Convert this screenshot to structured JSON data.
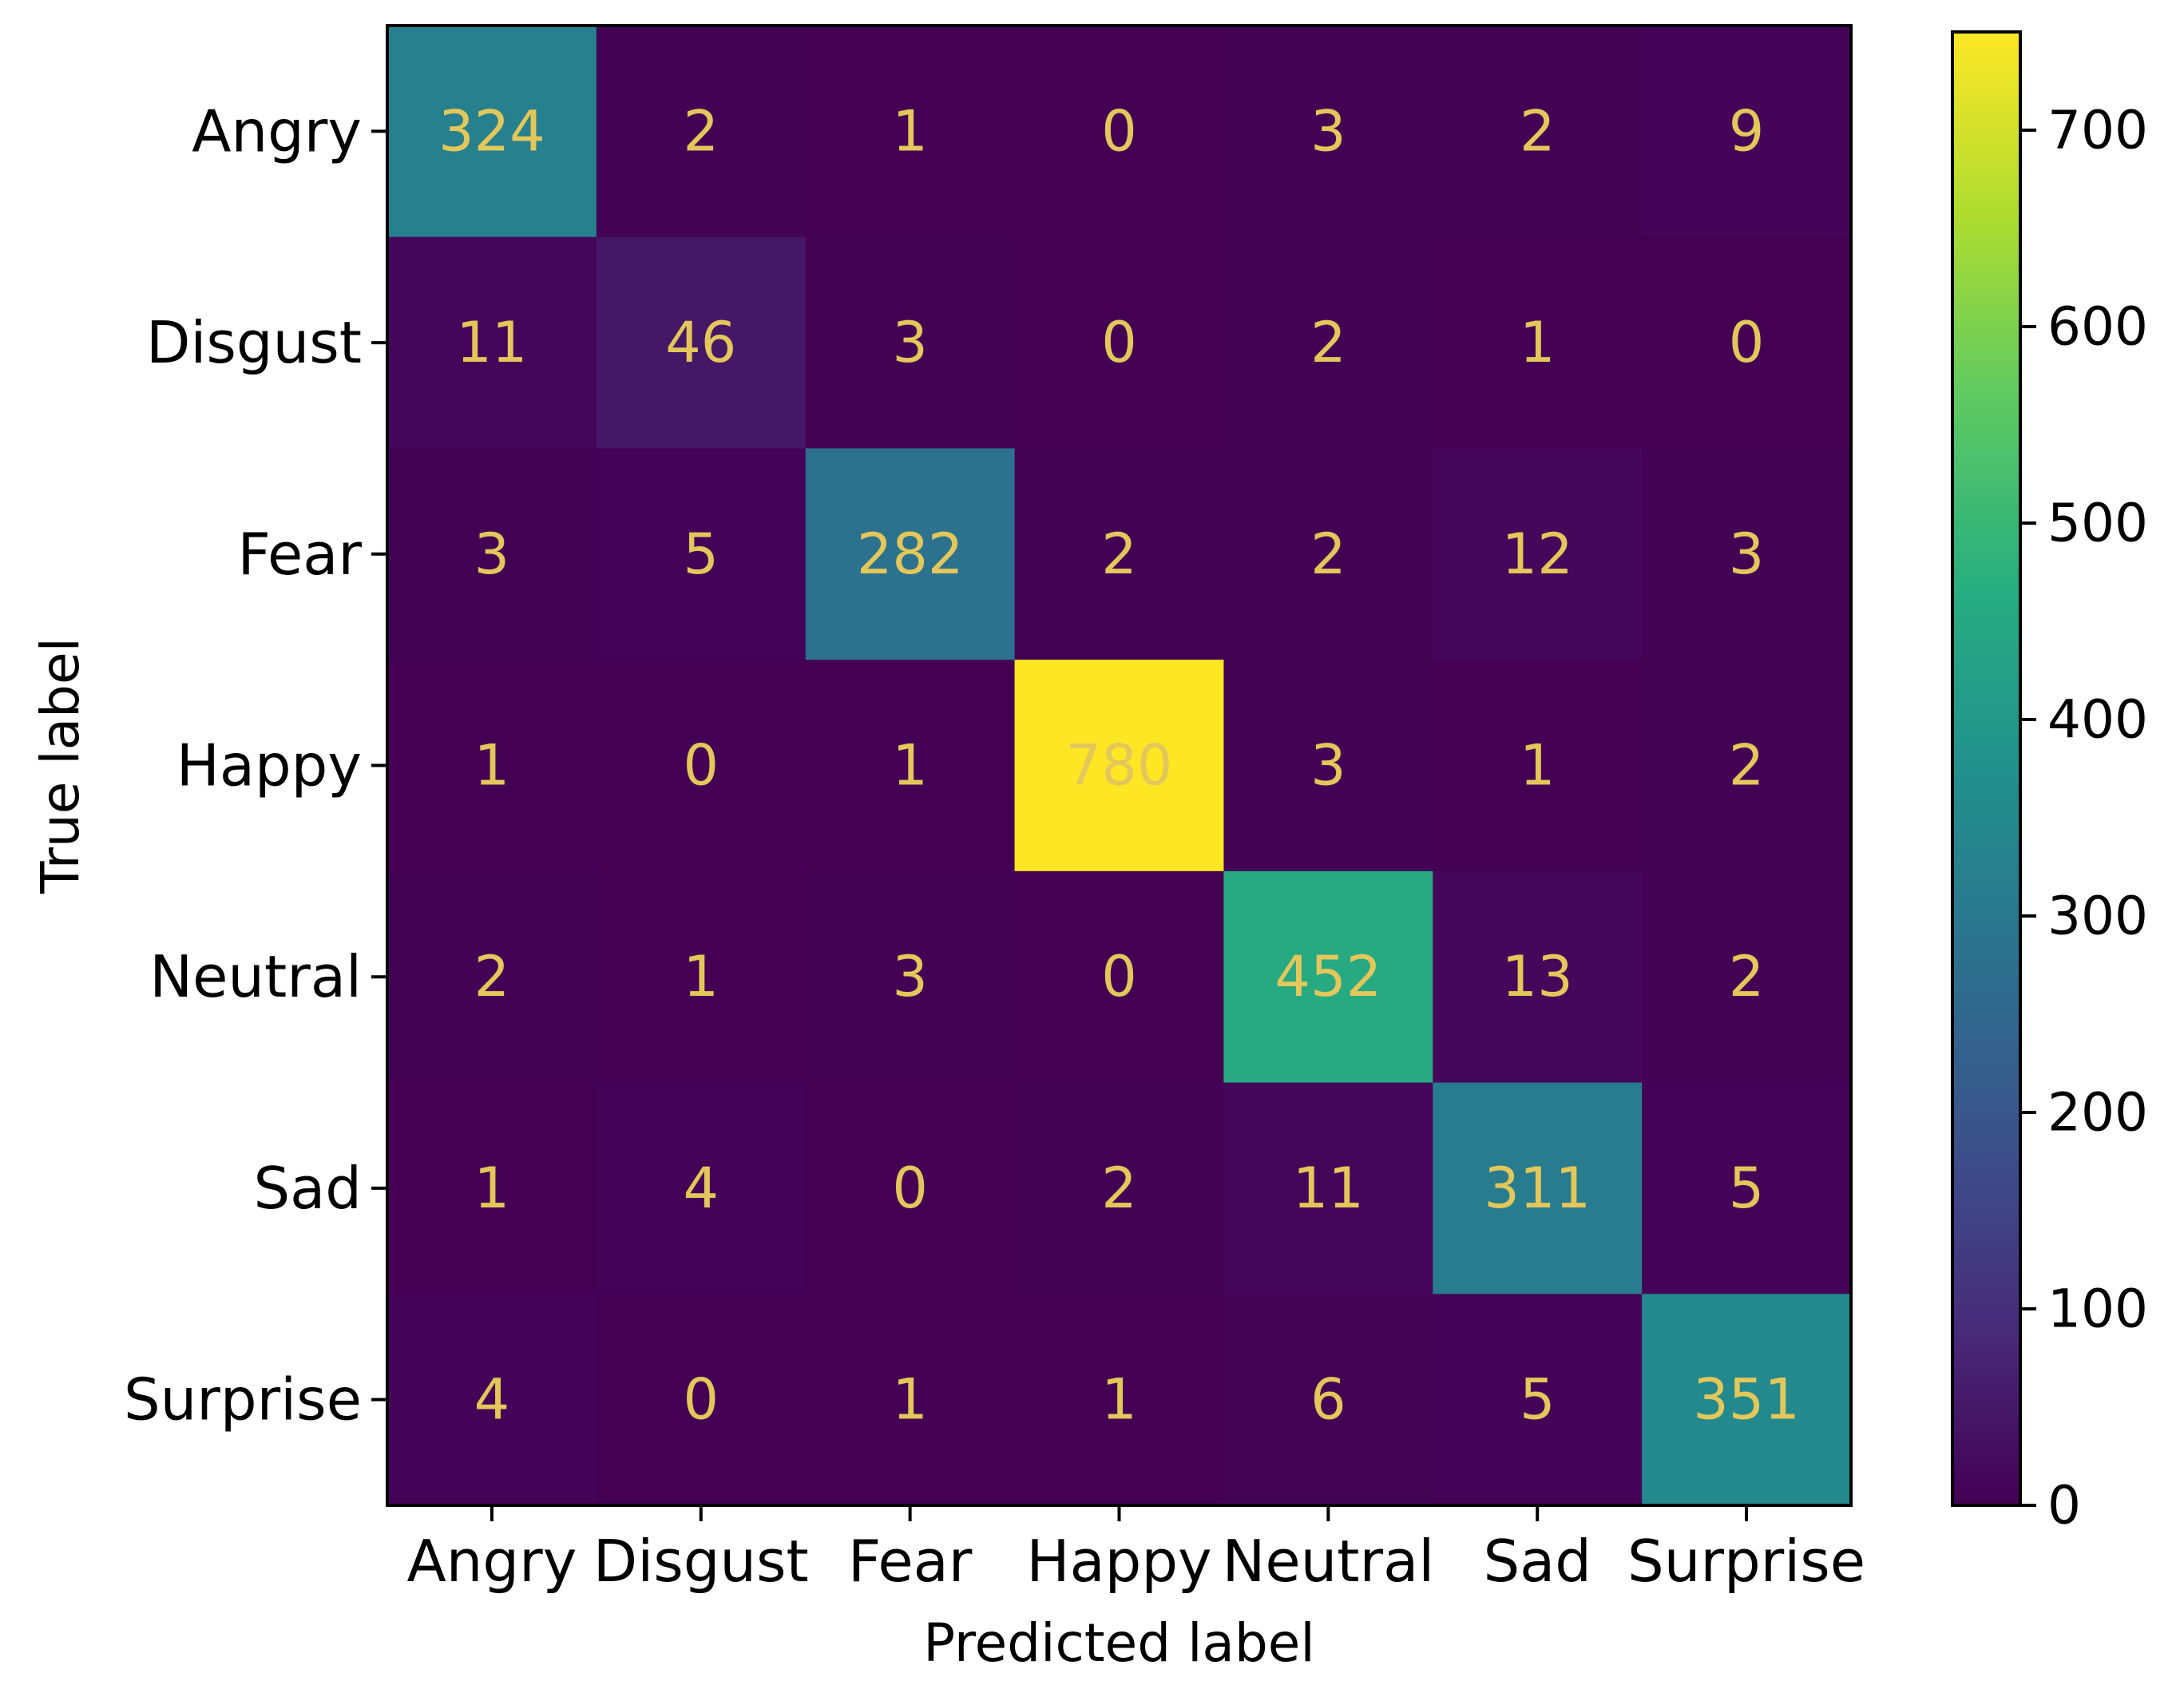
{
  "chart_data": {
    "type": "heatmap",
    "title": "",
    "xlabel": "Predicted label",
    "ylabel": "True label",
    "x_categories": [
      "Angry",
      "Disgust",
      "Fear",
      "Happy",
      "Neutral",
      "Sad",
      "Surprise"
    ],
    "y_categories": [
      "Angry",
      "Disgust",
      "Fear",
      "Happy",
      "Neutral",
      "Sad",
      "Surprise"
    ],
    "values": [
      [
        324,
        2,
        1,
        0,
        3,
        2,
        9
      ],
      [
        11,
        46,
        3,
        0,
        2,
        1,
        0
      ],
      [
        3,
        5,
        282,
        2,
        2,
        12,
        3
      ],
      [
        1,
        0,
        1,
        780,
        3,
        1,
        2
      ],
      [
        2,
        1,
        3,
        0,
        452,
        13,
        2
      ],
      [
        1,
        4,
        0,
        2,
        11,
        311,
        5
      ],
      [
        4,
        0,
        1,
        1,
        6,
        5,
        351
      ]
    ],
    "colormap": "viridis",
    "colorbar": {
      "range": [
        0,
        750
      ],
      "ticks": [
        0,
        100,
        200,
        300,
        400,
        500,
        600,
        700
      ]
    },
    "colors": {
      "low": "#440154",
      "high": "#fde725",
      "cell_text": "#e3c75a"
    }
  }
}
